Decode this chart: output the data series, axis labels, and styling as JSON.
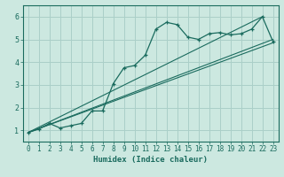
{
  "xlabel": "Humidex (Indice chaleur)",
  "ylabel": "",
  "xlim": [
    -0.5,
    23.5
  ],
  "ylim": [
    0.5,
    6.5
  ],
  "yticks": [
    1,
    2,
    3,
    4,
    5,
    6
  ],
  "xticks": [
    0,
    1,
    2,
    3,
    4,
    5,
    6,
    7,
    8,
    9,
    10,
    11,
    12,
    13,
    14,
    15,
    16,
    17,
    18,
    19,
    20,
    21,
    22,
    23
  ],
  "bg_color": "#cce8e0",
  "grid_color": "#aacfc8",
  "line_color": "#1a6b5e",
  "curve_x": [
    0,
    1,
    2,
    3,
    4,
    5,
    6,
    7,
    8,
    9,
    10,
    11,
    12,
    13,
    14,
    15,
    16,
    17,
    18,
    19,
    20,
    21,
    22,
    23
  ],
  "curve_y": [
    0.9,
    1.05,
    1.3,
    1.1,
    1.2,
    1.3,
    1.85,
    1.85,
    3.05,
    3.75,
    3.85,
    4.3,
    5.45,
    5.75,
    5.65,
    5.1,
    5.0,
    5.25,
    5.3,
    5.2,
    5.25,
    5.45,
    6.0,
    4.9
  ],
  "line1_x": [
    0,
    23
  ],
  "line1_y": [
    0.9,
    5.0
  ],
  "line2_x": [
    0,
    22
  ],
  "line2_y": [
    0.9,
    6.0
  ],
  "line3_x": [
    0,
    23
  ],
  "line3_y": [
    0.9,
    4.85
  ],
  "xlabel_fontsize": 6.5,
  "tick_fontsize": 5.5
}
